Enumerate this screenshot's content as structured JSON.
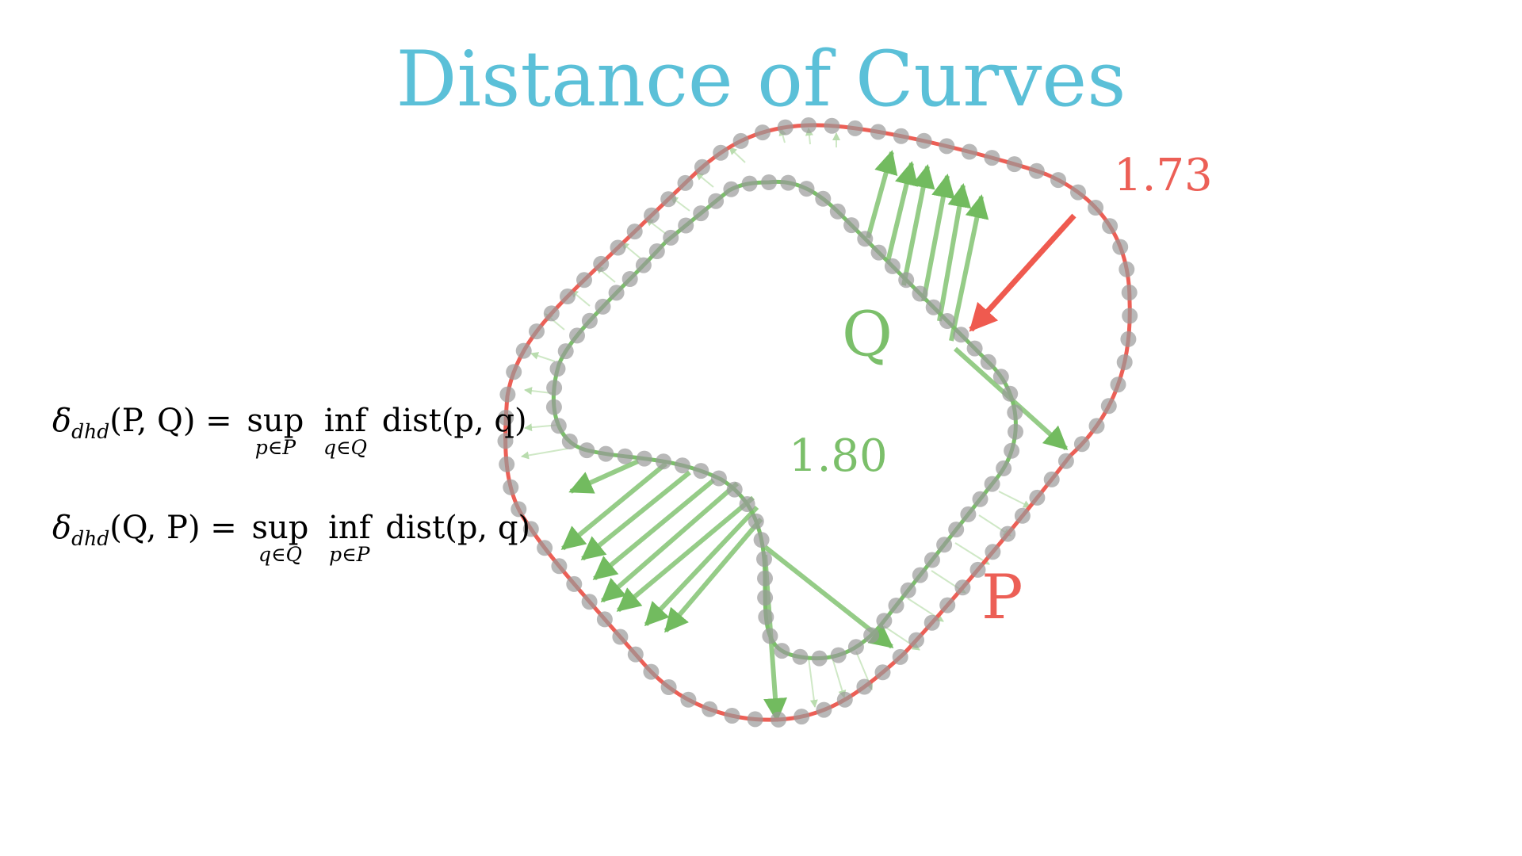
{
  "title": "Distance of Curves",
  "colors": {
    "title": "#5bc0d8",
    "curve_p": "#ec5f56",
    "curve_q": "#7bbf6a",
    "point": "#a8a8a8",
    "arrow_green": "#72bb5f",
    "arrow_red": "#ef5a4f"
  },
  "labels": {
    "p_name": "P",
    "q_name": "Q",
    "value_p_to_q": "1.73",
    "value_q_to_p": "1.80"
  },
  "formula1": {
    "delta": "δ",
    "sub": "dhd",
    "args": "(P, Q) =",
    "sup": "sup",
    "sup_sub": "p∈P",
    "inf": "inf",
    "inf_sub": "q∈Q",
    "tail": "dist(p, q)"
  },
  "formula2": {
    "delta": "δ",
    "sub": "dhd",
    "args": "(Q, P) =",
    "sup": "sup",
    "sup_sub": "q∈Q",
    "inf": "inf",
    "inf_sub": "p∈P",
    "tail": "dist(p, q)"
  }
}
